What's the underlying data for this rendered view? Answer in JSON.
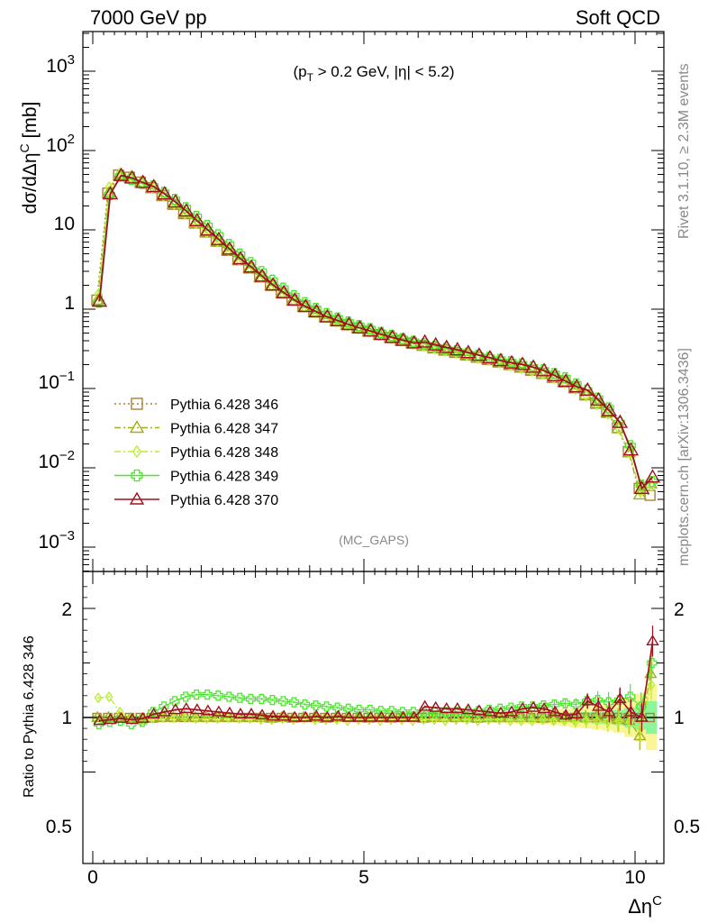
{
  "header": {
    "left": "7000 GeV pp",
    "right": "Soft QCD"
  },
  "cut_label": "(p_T > 0.2 GeV, |η| < 5.2)",
  "analysis_label": "(MC_GAPS)",
  "side_labels": {
    "rivet": "Rivet 3.1.10, ≥ 2.3M events",
    "source": "mcplots.cern.ch [arXiv:1306.3436]"
  },
  "colors": {
    "s346": "#a87f3b",
    "s347": "#a4ad1d",
    "s348": "#b9ef2f",
    "s349": "#4ce62e",
    "s370": "#a0101e",
    "band_yellow": "#fbf59a",
    "band_green": "#8ef59a"
  },
  "chart_data": [
    {
      "type": "line",
      "name": "main",
      "ylabel": "dσ/dΔη^C [mb]",
      "yscale": "log",
      "ylim": [
        0.00065,
        2500
      ],
      "xlim": [
        -0.2,
        10.6
      ],
      "x_ticks": [
        0,
        5,
        10
      ],
      "y_ticks": [
        "10^-3",
        "10^-2",
        "10^-1",
        "1",
        "10",
        "10^2",
        "10^3"
      ],
      "x": [
        0.1,
        0.3,
        0.5,
        0.7,
        0.9,
        1.1,
        1.3,
        1.5,
        1.7,
        1.9,
        2.1,
        2.3,
        2.5,
        2.7,
        2.9,
        3.1,
        3.3,
        3.5,
        3.7,
        3.9,
        4.1,
        4.3,
        4.5,
        4.7,
        4.9,
        5.1,
        5.3,
        5.5,
        5.7,
        5.9,
        6.1,
        6.3,
        6.5,
        6.7,
        6.9,
        7.1,
        7.3,
        7.5,
        7.7,
        7.9,
        8.1,
        8.3,
        8.5,
        8.7,
        8.9,
        9.1,
        9.3,
        9.5,
        9.7,
        9.9,
        10.1,
        10.3
      ],
      "legend": [
        {
          "label": "Pythia 6.428 346",
          "key": "s346",
          "marker": "square",
          "line": "dotted"
        },
        {
          "label": "Pythia 6.428 347",
          "key": "s347",
          "marker": "triangle",
          "line": "dashdot"
        },
        {
          "label": "Pythia 6.428 348",
          "key": "s348",
          "marker": "diamond",
          "line": "dashdot"
        },
        {
          "label": "Pythia 6.428 349",
          "key": "s349",
          "marker": "cross",
          "line": "solid"
        },
        {
          "label": "Pythia 6.428 370",
          "key": "s370",
          "marker": "triangle",
          "line": "solid"
        }
      ],
      "legend_position": "lower-left",
      "reference_values": [
        1.3,
        29,
        49,
        46,
        40,
        34,
        27,
        21,
        16,
        12.2,
        9.4,
        7.2,
        5.5,
        4.2,
        3.3,
        2.55,
        2.0,
        1.6,
        1.3,
        1.08,
        0.92,
        0.8,
        0.71,
        0.64,
        0.58,
        0.53,
        0.48,
        0.44,
        0.405,
        0.375,
        0.35,
        0.325,
        0.305,
        0.285,
        0.265,
        0.248,
        0.232,
        0.216,
        0.2,
        0.186,
        0.17,
        0.155,
        0.138,
        0.121,
        0.102,
        0.083,
        0.065,
        0.05,
        0.032,
        0.016,
        0.0055,
        0.0045
      ]
    },
    {
      "type": "line",
      "name": "ratio",
      "ylabel": "Ratio to Pythia 6.428 346",
      "ylim": [
        0.4,
        2.35
      ],
      "y_ticks": [
        0.5,
        1,
        2
      ],
      "x_ticks": [
        0,
        5,
        10
      ],
      "xlabel": "Δη^C",
      "bands": {
        "yellow_half_width": [
          0.03,
          0.03,
          0.03,
          0.03,
          0.03,
          0.03,
          0.03,
          0.03,
          0.03,
          0.03,
          0.03,
          0.03,
          0.03,
          0.03,
          0.03,
          0.03,
          0.03,
          0.03,
          0.03,
          0.03,
          0.03,
          0.03,
          0.03,
          0.03,
          0.03,
          0.03,
          0.03,
          0.03,
          0.03,
          0.03,
          0.03,
          0.035,
          0.035,
          0.04,
          0.04,
          0.045,
          0.05,
          0.05,
          0.055,
          0.06,
          0.06,
          0.065,
          0.07,
          0.08,
          0.09,
          0.1,
          0.11,
          0.12,
          0.14,
          0.18,
          0.22,
          0.3
        ],
        "green_half_width": [
          0.015,
          0.015,
          0.015,
          0.015,
          0.015,
          0.015,
          0.015,
          0.015,
          0.015,
          0.015,
          0.015,
          0.015,
          0.015,
          0.015,
          0.015,
          0.015,
          0.015,
          0.015,
          0.015,
          0.015,
          0.015,
          0.015,
          0.015,
          0.015,
          0.015,
          0.015,
          0.015,
          0.015,
          0.015,
          0.015,
          0.015,
          0.018,
          0.018,
          0.02,
          0.02,
          0.022,
          0.025,
          0.025,
          0.028,
          0.03,
          0.03,
          0.033,
          0.035,
          0.04,
          0.045,
          0.05,
          0.055,
          0.06,
          0.07,
          0.09,
          0.11,
          0.15
        ]
      },
      "series": [
        {
          "key": "s347",
          "values": [
            1.0,
            1.0,
            1.0,
            0.99,
            0.98,
            0.99,
            1.0,
            1.0,
            1.01,
            1.0,
            1.0,
            1.0,
            1.0,
            1.0,
            1.0,
            1.0,
            0.99,
            1.0,
            0.99,
            1.0,
            1.0,
            0.99,
            1.0,
            1.0,
            1.0,
            0.99,
            1.0,
            0.99,
            1.0,
            1.0,
            0.99,
            1.0,
            1.0,
            1.01,
            1.0,
            0.99,
            1.0,
            1.0,
            1.0,
            1.0,
            1.0,
            0.99,
            1.0,
            1.0,
            1.0,
            1.0,
            1.01,
            1.0,
            0.98,
            0.97,
            0.83,
            1.4
          ]
        },
        {
          "key": "s348",
          "values": [
            1.18,
            1.19,
            1.05,
            0.99,
            0.97,
            0.99,
            1.0,
            1.0,
            1.0,
            0.99,
            0.99,
            0.99,
            1.0,
            0.99,
            0.99,
            0.98,
            0.98,
            0.99,
            0.98,
            0.99,
            0.98,
            0.98,
            0.98,
            0.97,
            0.98,
            0.98,
            0.97,
            0.98,
            0.98,
            0.97,
            0.98,
            0.98,
            0.97,
            0.98,
            0.98,
            0.97,
            0.98,
            0.98,
            0.97,
            0.97,
            0.97,
            0.98,
            0.97,
            0.97,
            0.96,
            0.97,
            0.97,
            0.96,
            0.97,
            0.96,
            0.9,
            1.3
          ]
        },
        {
          "key": "s349",
          "values": [
            0.94,
            0.96,
            0.97,
            0.94,
            0.96,
            1.05,
            1.1,
            1.15,
            1.19,
            1.21,
            1.21,
            1.2,
            1.19,
            1.18,
            1.17,
            1.17,
            1.16,
            1.15,
            1.14,
            1.12,
            1.11,
            1.1,
            1.09,
            1.08,
            1.07,
            1.07,
            1.06,
            1.06,
            1.05,
            1.05,
            1.05,
            1.05,
            1.05,
            1.05,
            1.05,
            1.06,
            1.07,
            1.08,
            1.09,
            1.1,
            1.1,
            1.11,
            1.12,
            1.13,
            1.12,
            1.15,
            1.16,
            1.14,
            1.16,
            1.19,
            1.1,
            1.5
          ]
        },
        {
          "key": "s370",
          "values": [
            0.97,
            0.98,
            0.99,
            0.98,
            0.99,
            1.03,
            1.05,
            1.07,
            1.08,
            1.07,
            1.06,
            1.05,
            1.04,
            1.03,
            1.03,
            1.02,
            1.01,
            1.01,
            1.0,
            1.0,
            1.01,
            1.0,
            1.01,
            1.0,
            1.0,
            1.0,
            1.0,
            1.0,
            1.0,
            1.0,
            1.1,
            1.09,
            1.08,
            1.08,
            1.07,
            1.06,
            1.05,
            1.04,
            1.05,
            1.08,
            1.09,
            1.08,
            1.05,
            1.02,
            1.03,
            1.15,
            1.1,
            1.05,
            1.17,
            1.05,
            1.0,
            1.7
          ]
        }
      ]
    }
  ]
}
